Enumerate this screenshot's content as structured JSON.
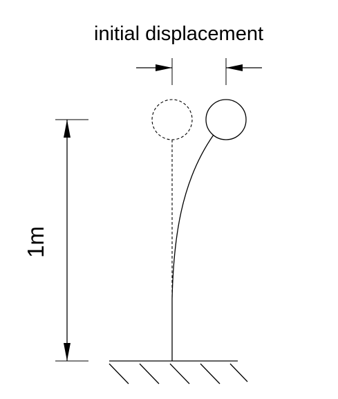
{
  "diagram": {
    "top_label": "initial displacement",
    "side_label": "1m"
  }
}
